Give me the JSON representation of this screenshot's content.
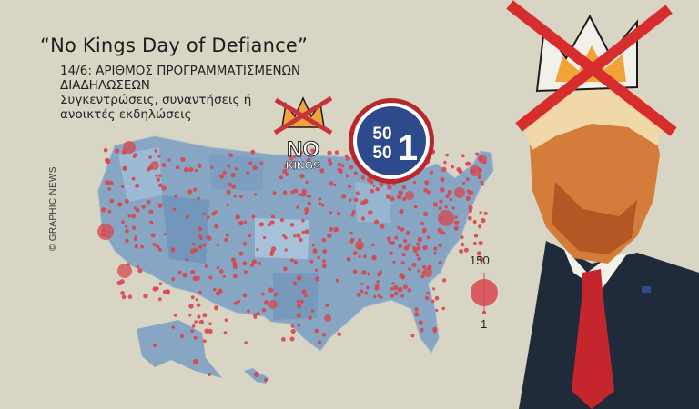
{
  "header": {
    "title": "“No Kings Day of Defiance”",
    "subtitle": "14/6: ΑΡΙΘΜΟΣ ΠΡΟΓΡΑΜΜΑΤΙΣΜΕΝΩΝ ΔΙΑΔΗΛΩΣΕΩΝ",
    "description": "Συγκεντρώσεις, συναντήσεις ή ανοικτές εκδηλώσεις"
  },
  "credit": "© GRAPHIC NEWS",
  "logos": {
    "no_kings_line1": "NO",
    "no_kings_line2": "KINGS",
    "badge_top": "50",
    "badge_bottom": "50",
    "badge_one": "1"
  },
  "legend": {
    "max_label": "150",
    "min_label": "1",
    "dot_color": "#d7474e"
  },
  "colors": {
    "background": "#d9d5c5",
    "map_fill": "#86a6c4",
    "event_dot": "#d7474e",
    "badge_blue": "#2c4a8c",
    "badge_red": "#b8262e"
  }
}
